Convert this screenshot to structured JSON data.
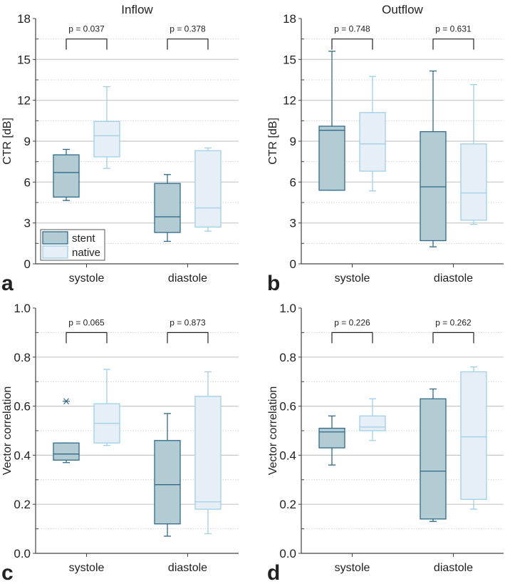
{
  "chart_data": [
    {
      "type": "box",
      "panel_label": "a",
      "title": "Inflow",
      "ylabel": "CTR [dB]",
      "ylim": [
        0,
        18
      ],
      "yticks": [
        "0",
        "3",
        "6",
        "9",
        "12",
        "15",
        "18"
      ],
      "ytick_values": [
        0,
        3,
        6,
        9,
        12,
        15,
        18
      ],
      "categories": [
        "systole",
        "diastole"
      ],
      "legend": {
        "placement": "bottom-left",
        "entries": [
          "stent",
          "native"
        ]
      },
      "p_values": [
        "p = 0.037",
        "p = 0.378"
      ],
      "series": [
        {
          "name": "stent",
          "boxes": [
            {
              "whisker_low": 4.65,
              "q1": 4.9,
              "median": 6.7,
              "q3": 8.0,
              "whisker_high": 8.4
            },
            {
              "whisker_low": 1.65,
              "q1": 2.3,
              "median": 3.45,
              "q3": 5.9,
              "whisker_high": 6.55
            }
          ]
        },
        {
          "name": "native",
          "boxes": [
            {
              "whisker_low": 7.0,
              "q1": 7.85,
              "median": 9.4,
              "q3": 10.45,
              "whisker_high": 13.0
            },
            {
              "whisker_low": 2.4,
              "q1": 2.7,
              "median": 4.1,
              "q3": 8.3,
              "whisker_high": 8.5
            }
          ]
        }
      ]
    },
    {
      "type": "box",
      "panel_label": "b",
      "title": "Outflow",
      "ylabel": "CTR [dB]",
      "ylim": [
        0,
        18
      ],
      "yticks": [
        "0",
        "3",
        "6",
        "9",
        "12",
        "15",
        "18"
      ],
      "ytick_values": [
        0,
        3,
        6,
        9,
        12,
        15,
        18
      ],
      "categories": [
        "systole",
        "diastole"
      ],
      "p_values": [
        "p = 0.748",
        "p = 0.631"
      ],
      "series": [
        {
          "name": "stent",
          "boxes": [
            {
              "whisker_low": 5.4,
              "q1": 5.4,
              "median": 9.8,
              "q3": 10.1,
              "whisker_high": 15.6
            },
            {
              "whisker_low": 1.25,
              "q1": 1.7,
              "median": 5.65,
              "q3": 9.7,
              "whisker_high": 14.15
            }
          ]
        },
        {
          "name": "native",
          "boxes": [
            {
              "whisker_low": 5.35,
              "q1": 6.8,
              "median": 8.8,
              "q3": 11.1,
              "whisker_high": 13.75
            },
            {
              "whisker_low": 2.9,
              "q1": 3.2,
              "median": 5.2,
              "q3": 8.8,
              "whisker_high": 13.15
            }
          ]
        }
      ]
    },
    {
      "type": "box",
      "panel_label": "c",
      "title": "",
      "ylabel": "Vector correlation",
      "ylim": [
        0,
        1
      ],
      "yticks": [
        "0.0",
        "0.2",
        "0.4",
        "0.6",
        "0.8",
        "1.0"
      ],
      "ytick_values": [
        0,
        0.2,
        0.4,
        0.6,
        0.8,
        1.0
      ],
      "categories": [
        "systole",
        "diastole"
      ],
      "p_values": [
        "p = 0.065",
        "p = 0.873"
      ],
      "series": [
        {
          "name": "stent",
          "boxes": [
            {
              "whisker_low": 0.37,
              "q1": 0.38,
              "median": 0.405,
              "q3": 0.45,
              "whisker_high": 0.45,
              "outliers": [
                0.62
              ]
            },
            {
              "whisker_low": 0.07,
              "q1": 0.12,
              "median": 0.28,
              "q3": 0.46,
              "whisker_high": 0.57
            }
          ]
        },
        {
          "name": "native",
          "boxes": [
            {
              "whisker_low": 0.44,
              "q1": 0.45,
              "median": 0.53,
              "q3": 0.61,
              "whisker_high": 0.75
            },
            {
              "whisker_low": 0.08,
              "q1": 0.18,
              "median": 0.21,
              "q3": 0.64,
              "whisker_high": 0.74
            }
          ]
        }
      ]
    },
    {
      "type": "box",
      "panel_label": "d",
      "title": "",
      "ylabel": "Vector correlation",
      "ylim": [
        0,
        1
      ],
      "yticks": [
        "0.0",
        "0.2",
        "0.4",
        "0.6",
        "0.8",
        "1.0"
      ],
      "ytick_values": [
        0,
        0.2,
        0.4,
        0.6,
        0.8,
        1.0
      ],
      "categories": [
        "systole",
        "diastole"
      ],
      "p_values": [
        "p = 0.226",
        "p = 0.262"
      ],
      "series": [
        {
          "name": "stent",
          "boxes": [
            {
              "whisker_low": 0.36,
              "q1": 0.43,
              "median": 0.495,
              "q3": 0.51,
              "whisker_high": 0.56
            },
            {
              "whisker_low": 0.13,
              "q1": 0.14,
              "median": 0.335,
              "q3": 0.63,
              "whisker_high": 0.67
            }
          ]
        },
        {
          "name": "native",
          "boxes": [
            {
              "whisker_low": 0.46,
              "q1": 0.5,
              "median": 0.515,
              "q3": 0.56,
              "whisker_high": 0.63
            },
            {
              "whisker_low": 0.18,
              "q1": 0.22,
              "median": 0.475,
              "q3": 0.74,
              "whisker_high": 0.76
            }
          ]
        }
      ]
    }
  ],
  "colors": {
    "stent_fill": "#b3cbd2",
    "stent_stroke": "#2f6a8a",
    "native_fill": "#e6eef6",
    "native_stroke": "#9fd0ea",
    "grid": "#c8c8c8",
    "axis": "#444444"
  }
}
